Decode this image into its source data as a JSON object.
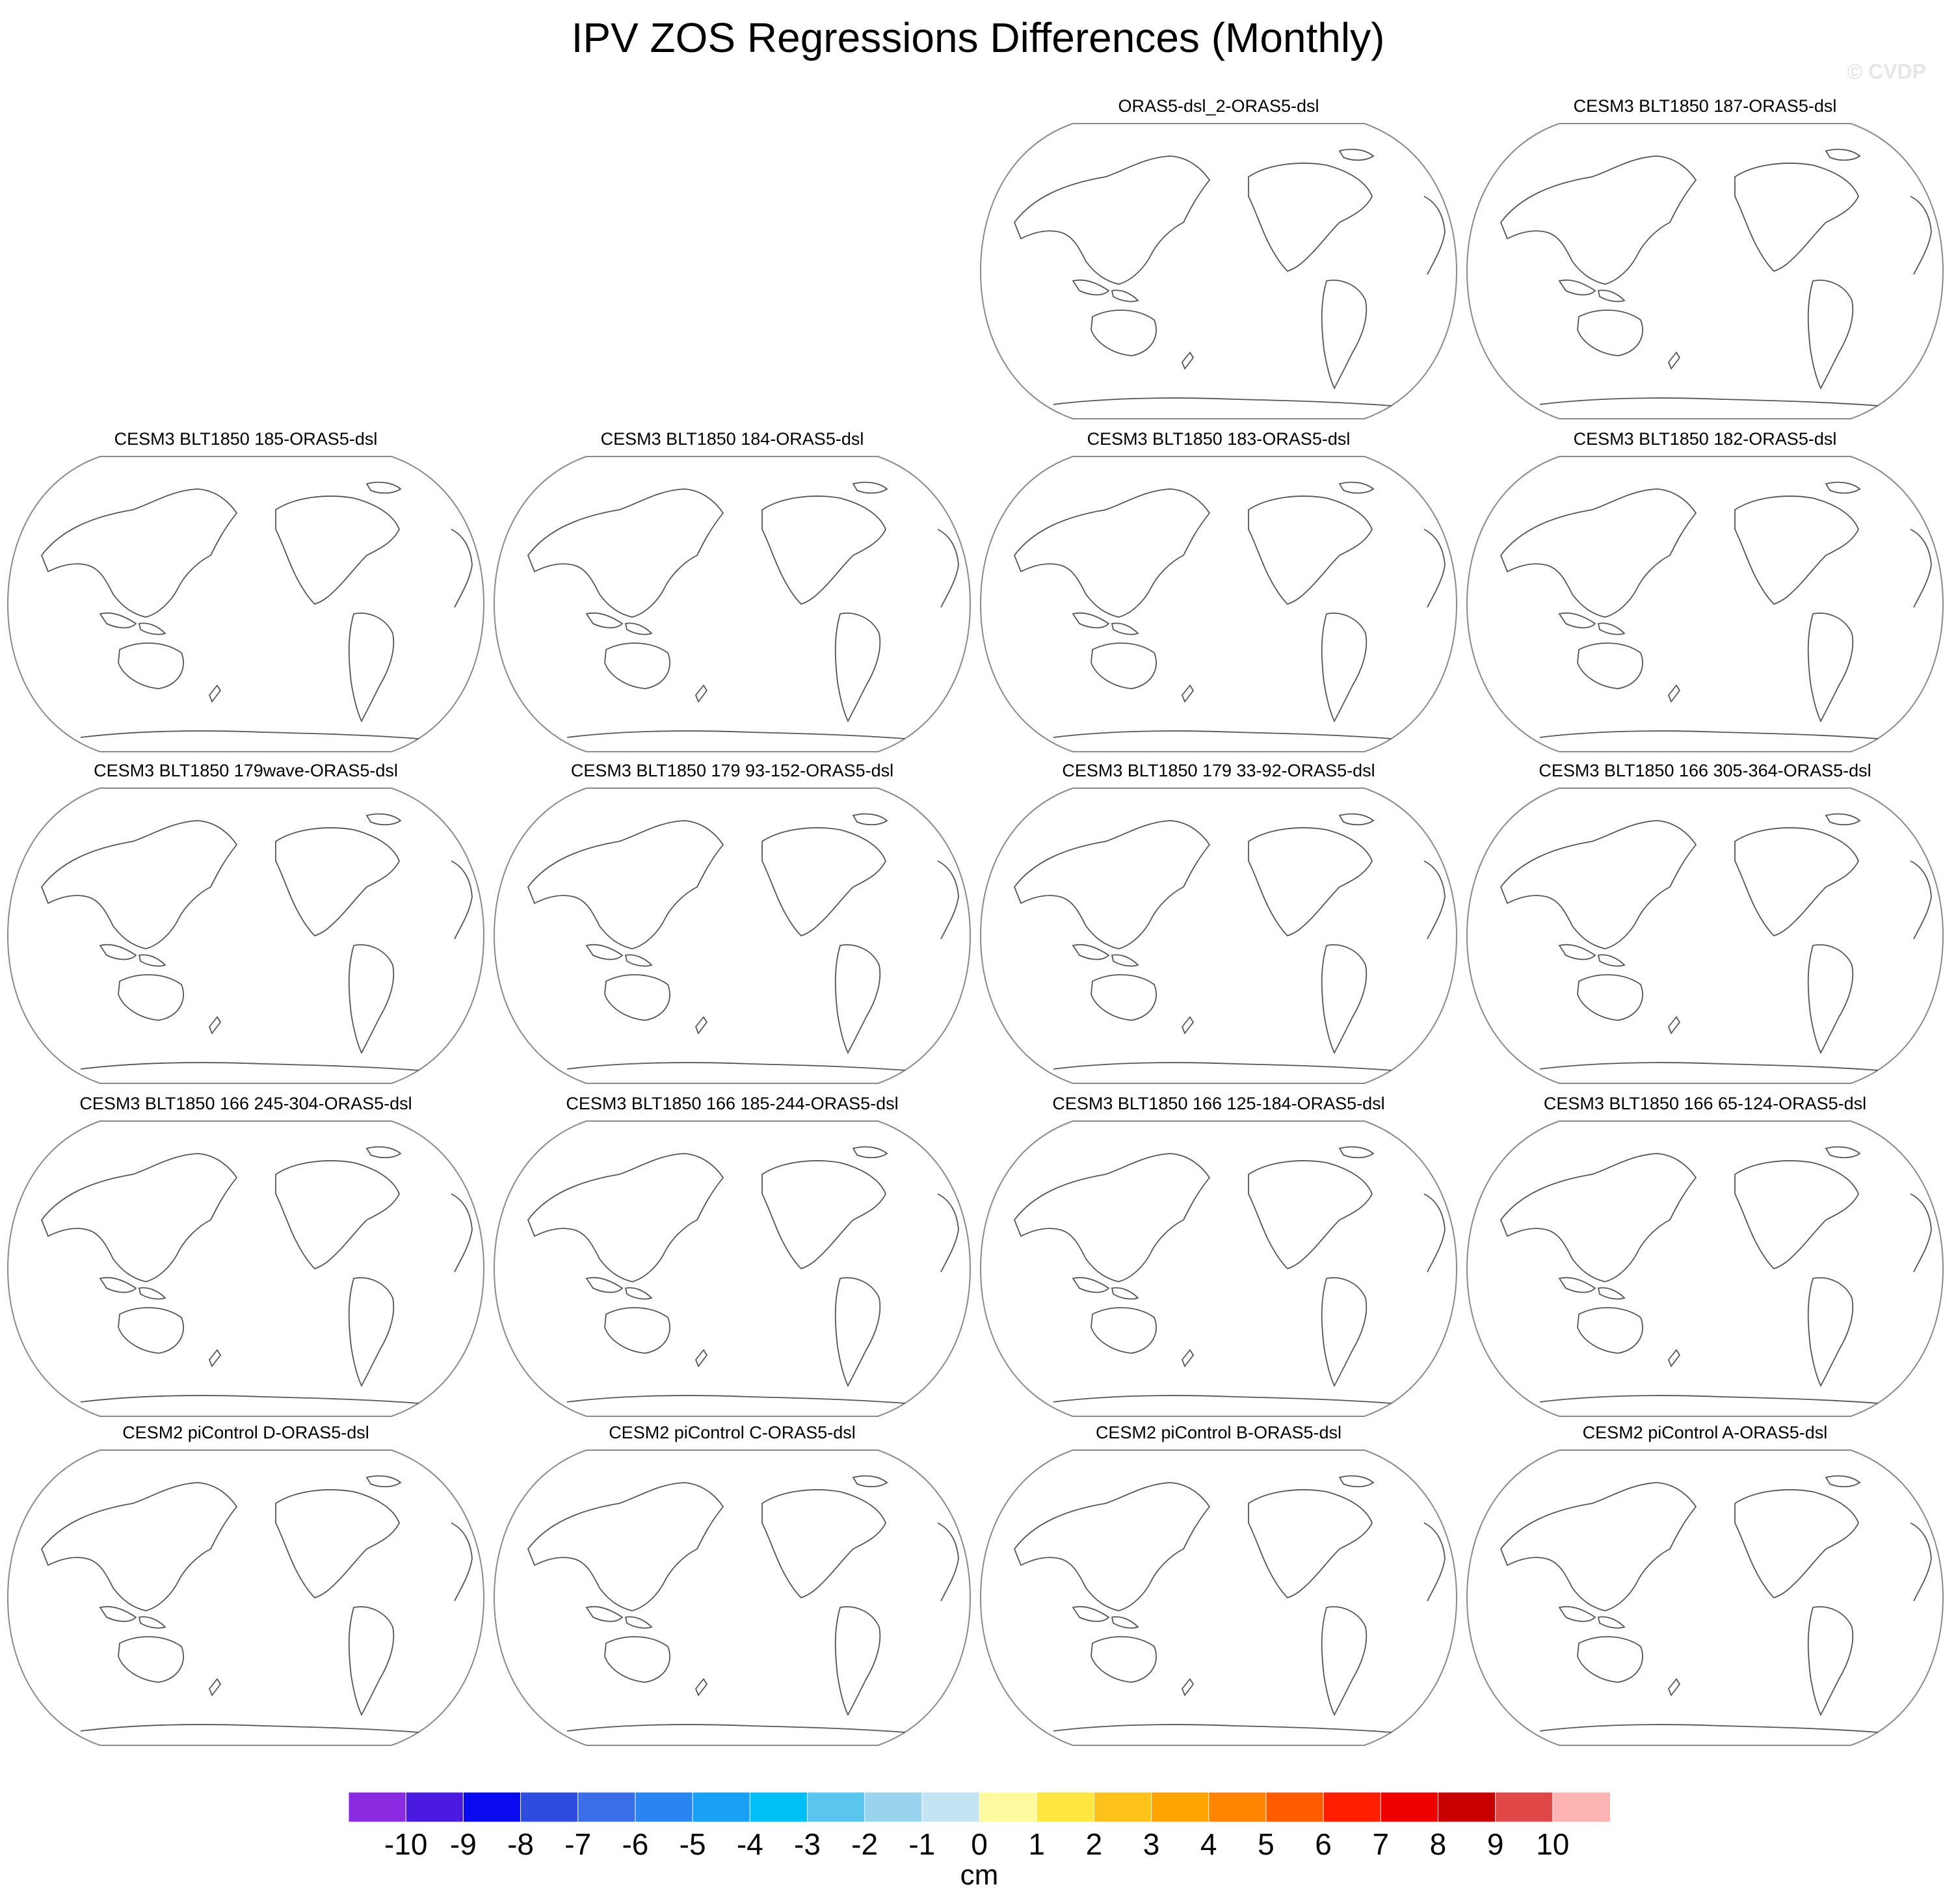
{
  "title": "IPV ZOS Regressions Differences (Monthly)",
  "watermark": "© CVDP",
  "panels": [
    {
      "label": "ORAS5-dsl_2-ORAS5-dsl"
    },
    {
      "label": "CESM3 BLT1850 187-ORAS5-dsl"
    },
    {
      "label": "CESM3 BLT1850 185-ORAS5-dsl"
    },
    {
      "label": "CESM3 BLT1850 184-ORAS5-dsl"
    },
    {
      "label": "CESM3 BLT1850 183-ORAS5-dsl"
    },
    {
      "label": "CESM3 BLT1850 182-ORAS5-dsl"
    },
    {
      "label": "CESM3 BLT1850 179wave-ORAS5-dsl"
    },
    {
      "label": "CESM3 BLT1850 179 93-152-ORAS5-dsl"
    },
    {
      "label": "CESM3 BLT1850 179 33-92-ORAS5-dsl"
    },
    {
      "label": "CESM3 BLT1850 166 305-364-ORAS5-dsl"
    },
    {
      "label": "CESM3 BLT1850 166 245-304-ORAS5-dsl"
    },
    {
      "label": "CESM3 BLT1850 166 185-244-ORAS5-dsl"
    },
    {
      "label": "CESM3 BLT1850 166 125-184-ORAS5-dsl"
    },
    {
      "label": "CESM3 BLT1850 166 65-124-ORAS5-dsl"
    },
    {
      "label": "CESM2 piControl D-ORAS5-dsl"
    },
    {
      "label": "CESM2 piControl C-ORAS5-dsl"
    },
    {
      "label": "CESM2 piControl B-ORAS5-dsl"
    },
    {
      "label": "CESM2 piControl A-ORAS5-dsl"
    }
  ],
  "colorbar": {
    "labels": [
      "-10",
      "-9",
      "-8",
      "-7",
      "-6",
      "-5",
      "-4",
      "-3",
      "-2",
      "-1",
      "0",
      "1",
      "2",
      "3",
      "4",
      "5",
      "6",
      "7",
      "8",
      "9",
      "10"
    ],
    "colors": [
      "#8a2be2",
      "#4b1ae0",
      "#0a0af0",
      "#2e4de0",
      "#3a6ee8",
      "#2a85f0",
      "#1aa0f5",
      "#00bff5",
      "#5ac6f0",
      "#9ad3ee",
      "#c4e4f4",
      "#fffaa0",
      "#ffe640",
      "#ffc21a",
      "#ffa300",
      "#ff8400",
      "#ff5c00",
      "#ff1e00",
      "#ee0000",
      "#c80000",
      "#e04848",
      "#ffb4b4"
    ],
    "units": "cm"
  }
}
